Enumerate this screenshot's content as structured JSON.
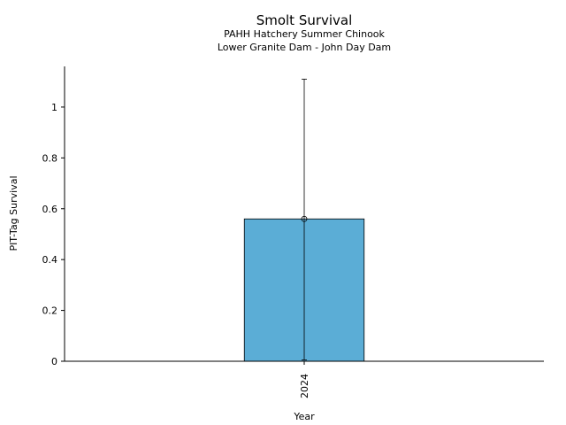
{
  "chart_data": {
    "type": "bar",
    "title": "Smolt Survival",
    "subtitle_1": "PAHH Hatchery Summer Chinook",
    "subtitle_2": "Lower Granite Dam - John Day Dam",
    "xlabel": "Year",
    "ylabel": "PIT-Tag Survival",
    "categories": [
      "2024"
    ],
    "values": [
      0.56
    ],
    "error_low": [
      0.005
    ],
    "error_high": [
      1.11
    ],
    "ylim": [
      0,
      1.16
    ],
    "yticks": [
      0,
      0.2,
      0.4,
      0.6,
      0.8,
      1
    ],
    "ytick_labels": [
      "0",
      "0.2",
      "0.4",
      "0.6",
      "0.8",
      "1"
    ],
    "bar_color": "#5badd6",
    "grid": false,
    "legend": "none"
  }
}
